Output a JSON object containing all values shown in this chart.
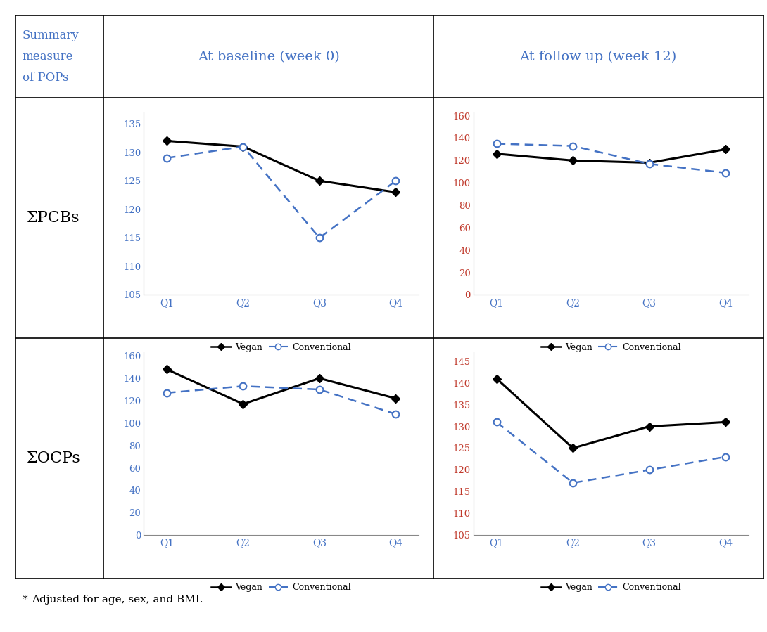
{
  "header_col": "Summary\nmeasure\nof POPs",
  "col_headers": [
    "At baseline (week 0)",
    "At follow up (week 12)"
  ],
  "col_header_color": "#4472c4",
  "right_header_color": "#4472c4",
  "row_labels": [
    "ΣPCBs",
    "ΣOCPs"
  ],
  "quartiles": [
    "Q1",
    "Q2",
    "Q3",
    "Q4"
  ],
  "plots": [
    {
      "row": 0,
      "col": 0,
      "vegan": [
        132,
        131,
        125,
        123
      ],
      "conventional": [
        129,
        131,
        115,
        125
      ],
      "ylim": [
        105,
        137
      ],
      "yticks": [
        105,
        110,
        115,
        120,
        125,
        130,
        135
      ],
      "ytick_color": "#4472c4",
      "xtick_color": "#4472c4"
    },
    {
      "row": 0,
      "col": 1,
      "vegan": [
        126,
        120,
        118,
        130
      ],
      "conventional": [
        135,
        133,
        117,
        109
      ],
      "ylim": [
        0,
        163
      ],
      "yticks": [
        0,
        20,
        40,
        60,
        80,
        100,
        120,
        140,
        160
      ],
      "ytick_color": "#c0392b",
      "xtick_color": "#4472c4"
    },
    {
      "row": 1,
      "col": 0,
      "vegan": [
        148,
        117,
        140,
        122
      ],
      "conventional": [
        127,
        133,
        130,
        108
      ],
      "ylim": [
        0,
        163
      ],
      "yticks": [
        0,
        20,
        40,
        60,
        80,
        100,
        120,
        140,
        160
      ],
      "ytick_color": "#4472c4",
      "xtick_color": "#4472c4"
    },
    {
      "row": 1,
      "col": 1,
      "vegan": [
        141,
        125,
        130,
        131
      ],
      "conventional": [
        131,
        117,
        120,
        123
      ],
      "ylim": [
        105,
        147
      ],
      "yticks": [
        105,
        110,
        115,
        120,
        125,
        130,
        135,
        140,
        145
      ],
      "ytick_color": "#c0392b",
      "xtick_color": "#4472c4"
    }
  ],
  "vegan_color": "#000000",
  "conventional_color": "#4472c4",
  "footnote": "* Adjusted for age, sex, and BMI.",
  "footnote_superscript": "*"
}
